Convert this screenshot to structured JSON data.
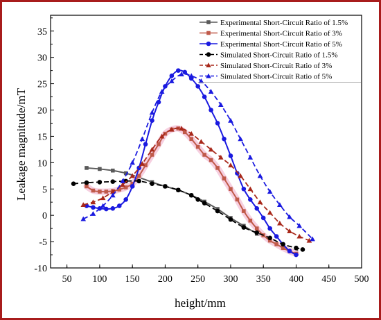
{
  "chart_data": {
    "type": "line",
    "title": "",
    "xlabel": "height/mm",
    "ylabel": "Leakage magnitude/mT",
    "xlim": [
      25,
      500
    ],
    "ylim": [
      -10,
      38
    ],
    "xticks": [
      50,
      100,
      150,
      200,
      250,
      300,
      350,
      400,
      450,
      500
    ],
    "yticks": [
      -10,
      -5,
      0,
      5,
      10,
      15,
      20,
      25,
      30,
      35
    ],
    "grid": false,
    "legend_position": "top-right",
    "series": [
      {
        "name": "Experimental Short-Circuit Ratio of 1.5%",
        "color": "#5a5a5a",
        "marker": "square",
        "line_style": "solid",
        "x": [
          80,
          100,
          120,
          140,
          160,
          180,
          200,
          220,
          240,
          260,
          280,
          300,
          320,
          340,
          360,
          380,
          400
        ],
        "y": [
          9.0,
          8.8,
          8.5,
          8.0,
          7.2,
          6.3,
          5.5,
          4.8,
          3.8,
          2.6,
          1.2,
          -0.5,
          -2.0,
          -3.5,
          -4.8,
          -5.8,
          -6.8
        ]
      },
      {
        "name": "Experimental Short-Circuit Ratio of 3%",
        "color": "#c05a4a",
        "marker": "square",
        "line_style": "solid",
        "x": [
          80,
          90,
          100,
          110,
          120,
          130,
          140,
          150,
          160,
          170,
          180,
          190,
          200,
          210,
          220,
          230,
          240,
          250,
          260,
          270,
          280,
          290,
          300,
          310,
          320,
          330,
          340,
          350,
          360,
          370,
          380,
          390,
          400
        ],
        "y": [
          5.5,
          4.7,
          4.5,
          4.5,
          4.6,
          4.9,
          5.3,
          6.0,
          7.5,
          9.5,
          11.5,
          13.5,
          15.5,
          16.3,
          16.5,
          15.8,
          14.5,
          13.0,
          11.5,
          10.5,
          9.0,
          7.0,
          5.0,
          3.0,
          0.8,
          -1.0,
          -2.5,
          -3.8,
          -4.8,
          -5.5,
          -6.2,
          -6.8,
          -7.3
        ]
      },
      {
        "name": "Experimental Short-Circuit Ratio of 5%",
        "color": "#1a1ae0",
        "marker": "circle",
        "line_style": "solid",
        "x": [
          80,
          90,
          100,
          110,
          120,
          130,
          140,
          150,
          160,
          170,
          180,
          190,
          200,
          210,
          220,
          230,
          240,
          250,
          260,
          270,
          280,
          290,
          300,
          310,
          320,
          330,
          340,
          350,
          360,
          370,
          380,
          390,
          400
        ],
        "y": [
          1.8,
          1.5,
          1.3,
          1.2,
          1.3,
          1.8,
          3.0,
          5.5,
          9.0,
          13.5,
          18.0,
          21.5,
          24.5,
          26.5,
          27.5,
          27.2,
          26.0,
          24.5,
          22.5,
          20.0,
          17.5,
          14.5,
          11.3,
          8.0,
          5.0,
          3.0,
          1.3,
          -0.5,
          -2.5,
          -4.0,
          -5.5,
          -6.8,
          -7.5
        ]
      },
      {
        "name": "Simulated Short-Circuit Ratio of 1.5%",
        "color": "#000000",
        "marker": "circle",
        "line_style": "dashed",
        "x": [
          60,
          80,
          100,
          120,
          140,
          160,
          180,
          200,
          220,
          240,
          250,
          260,
          280,
          300,
          320,
          340,
          360,
          380,
          400,
          410
        ],
        "y": [
          6.0,
          6.2,
          6.3,
          6.4,
          6.5,
          6.5,
          6.0,
          5.5,
          4.8,
          3.8,
          3.0,
          2.3,
          0.8,
          -0.8,
          -2.3,
          -3.3,
          -4.3,
          -5.5,
          -6.2,
          -6.5
        ]
      },
      {
        "name": "Simulated Short-Circuit Ratio of 3%",
        "color": "#a8281a",
        "marker": "triangle",
        "line_style": "dashed",
        "x": [
          75,
          90,
          105,
          120,
          135,
          150,
          165,
          180,
          195,
          210,
          225,
          240,
          255,
          270,
          285,
          300,
          315,
          330,
          345,
          360,
          375,
          390,
          405,
          420
        ],
        "y": [
          2.0,
          2.5,
          3.3,
          4.5,
          5.8,
          7.5,
          9.8,
          12.5,
          15.0,
          16.3,
          16.5,
          15.5,
          14.0,
          12.5,
          11.0,
          9.5,
          7.5,
          5.0,
          2.5,
          0.5,
          -1.5,
          -3.0,
          -4.0,
          -4.8
        ]
      },
      {
        "name": "Simulated Short-Circuit Ratio of 5%",
        "color": "#1a1ae0",
        "marker": "triangle",
        "line_style": "dashed",
        "x": [
          75,
          90,
          105,
          120,
          135,
          150,
          165,
          180,
          195,
          210,
          225,
          240,
          255,
          270,
          285,
          300,
          315,
          330,
          345,
          360,
          375,
          390,
          405,
          425
        ],
        "y": [
          -0.7,
          0.3,
          1.8,
          3.8,
          6.5,
          10.0,
          14.5,
          19.5,
          23.5,
          25.5,
          26.8,
          26.5,
          25.5,
          23.5,
          21.0,
          18.0,
          14.5,
          11.0,
          7.5,
          4.5,
          2.0,
          -0.3,
          -2.0,
          -4.5
        ]
      }
    ]
  }
}
